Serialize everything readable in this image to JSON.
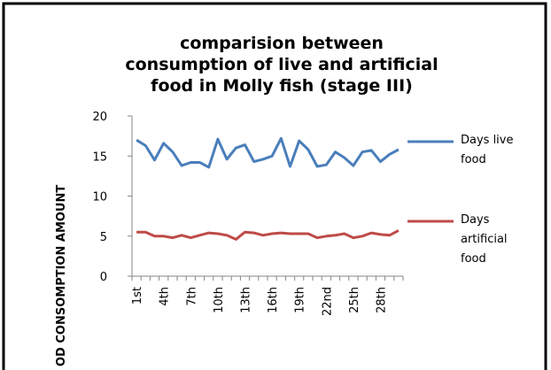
{
  "chart_data": {
    "type": "line",
    "title": [
      "comparision between",
      "consumption of live and artificial",
      "food in Molly fish (stage III)"
    ],
    "y_label": "OD CONSOMPTION AMOUNT",
    "categories": [
      "1st",
      null,
      null,
      "4th",
      null,
      null,
      "7th",
      null,
      null,
      "10th",
      null,
      null,
      "13th",
      null,
      null,
      "16th",
      null,
      null,
      "19th",
      null,
      null,
      "22nd",
      null,
      null,
      "25th",
      null,
      null,
      "28th",
      null,
      null
    ],
    "series": [
      {
        "name": "Days live food",
        "color": "#4a7ebb",
        "values": [
          17.0,
          16.3,
          14.5,
          16.6,
          15.5,
          13.8,
          14.2,
          14.2,
          13.6,
          17.1,
          14.6,
          16.0,
          16.4,
          14.3,
          14.6,
          15.0,
          17.2,
          13.7,
          16.9,
          15.8,
          13.7,
          13.9,
          15.5,
          14.8,
          13.8,
          15.5,
          15.7,
          14.3,
          15.2,
          15.8
        ]
      },
      {
        "name": "Days artificial food",
        "color": "#be4b48",
        "values": [
          5.5,
          5.5,
          5.0,
          5.0,
          4.8,
          5.1,
          4.8,
          5.1,
          5.4,
          5.3,
          5.1,
          4.6,
          5.5,
          5.4,
          5.1,
          5.3,
          5.4,
          5.3,
          5.3,
          5.3,
          4.8,
          5.0,
          5.1,
          5.3,
          4.8,
          5.0,
          5.4,
          5.2,
          5.1,
          5.7
        ]
      }
    ],
    "ylim": [
      0,
      20
    ],
    "yticks": [
      0,
      5,
      10,
      15,
      20
    ],
    "legend": "right"
  }
}
